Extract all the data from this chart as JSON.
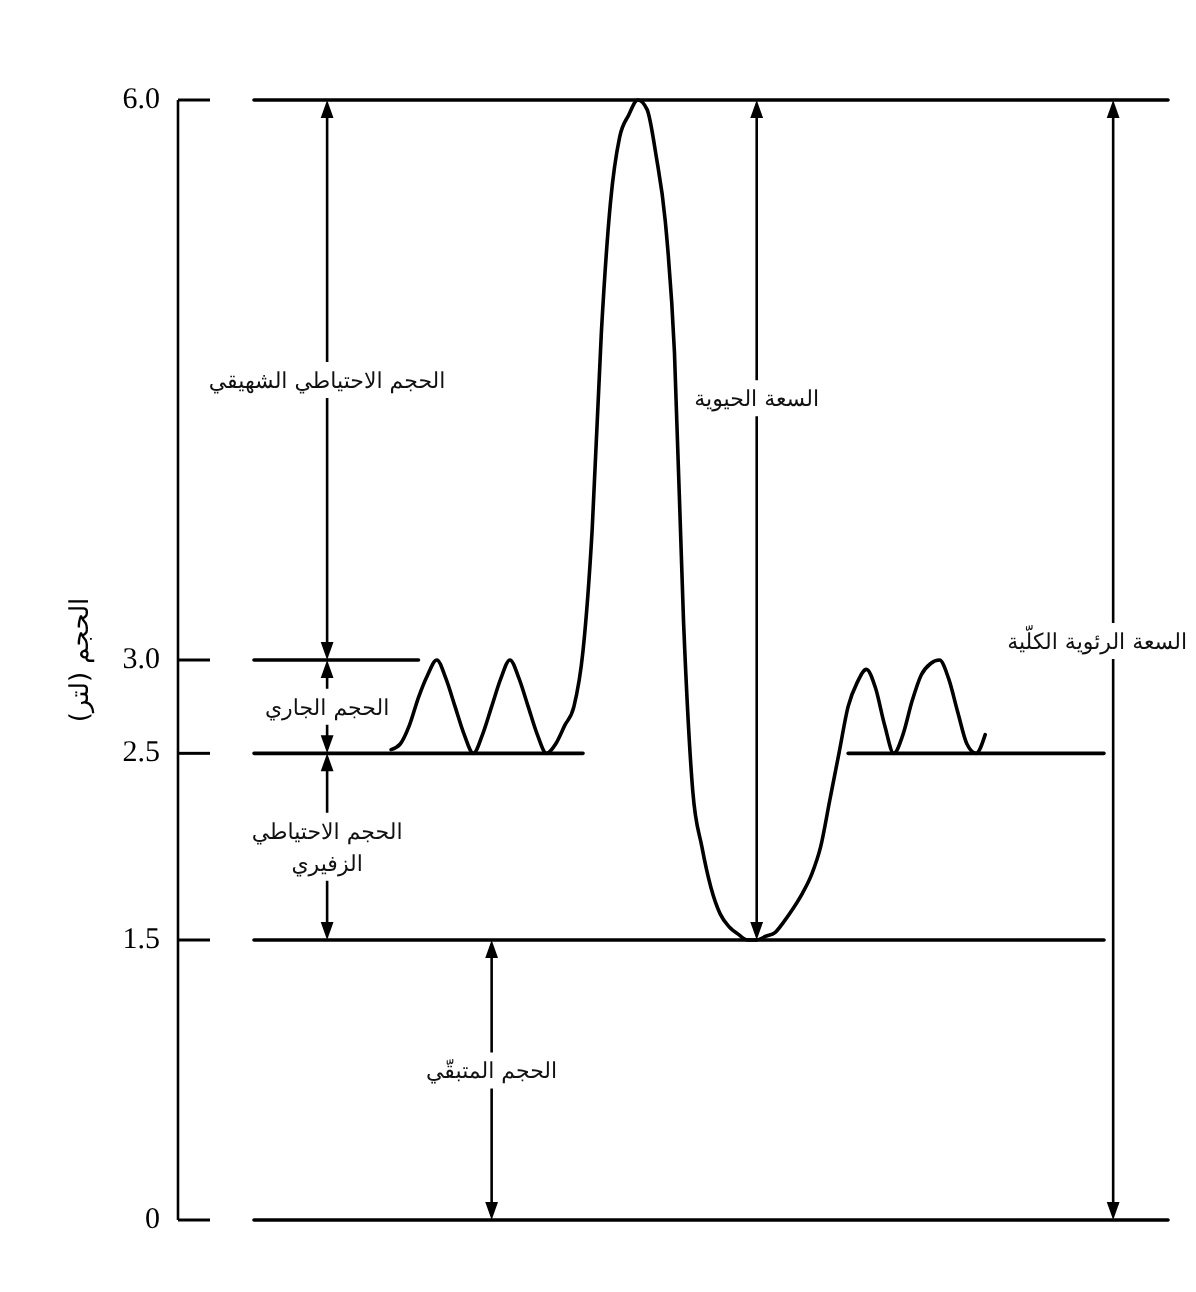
{
  "chart_data": {
    "type": "line",
    "ylabel": "الحجم (لتر)",
    "categories": [
      null,
      null,
      null,
      null,
      null,
      null,
      null,
      null,
      null,
      null,
      null,
      null,
      null,
      null,
      null,
      null,
      null,
      null,
      null,
      null,
      null,
      null,
      null,
      null,
      null,
      null,
      null,
      null,
      null,
      null,
      null,
      null,
      null,
      null,
      null,
      null,
      null,
      null,
      null,
      null,
      null,
      null,
      null,
      null,
      null,
      null,
      null,
      null,
      null,
      null,
      null,
      null,
      null,
      null,
      null,
      null,
      null,
      null,
      null,
      null,
      null,
      null,
      null,
      null,
      null,
      null,
      null,
      null,
      null,
      null,
      null,
      null,
      null,
      null,
      null,
      null,
      null,
      null,
      null,
      null,
      null,
      null,
      null,
      null,
      null,
      null,
      null,
      null,
      null,
      null,
      null,
      null,
      null,
      null,
      null,
      null,
      null,
      null,
      null,
      null,
      null
    ],
    "series": [
      {
        "color": "#000000",
        "values": [
          null,
          null,
          null,
          null,
          null,
          null,
          null,
          null,
          null,
          null,
          null,
          null,
          null,
          null,
          null,
          2.52,
          2.55,
          2.65,
          2.8,
          2.92,
          3,
          2.9,
          2.75,
          2.6,
          2.5,
          2.6,
          2.75,
          2.9,
          3,
          2.9,
          2.75,
          2.6,
          2.5,
          2.55,
          2.65,
          2.75,
          3.05,
          3.7,
          4.75,
          5.45,
          5.8,
          5.92,
          6,
          5.95,
          5.7,
          5.35,
          4.65,
          3.2,
          2.3,
          2,
          1.78,
          1.64,
          1.57,
          1.53,
          1.5,
          1.5,
          1.52,
          1.54,
          1.6,
          1.67,
          1.75,
          1.85,
          2,
          2.25,
          2.5,
          2.75,
          2.88,
          2.95,
          2.85,
          2.65,
          2.5,
          2.6,
          2.78,
          2.92,
          2.98,
          3,
          2.9,
          2.72,
          2.55,
          2.5,
          2.6,
          null,
          null,
          null,
          null,
          null,
          null,
          null,
          null,
          null,
          null,
          null,
          null,
          null,
          null,
          null,
          null,
          null,
          null,
          null,
          null
        ]
      },
      {
        "color": "#000000",
        "values": [
          6,
          6,
          6,
          6,
          6,
          6,
          6,
          6,
          6,
          6,
          6,
          6,
          6,
          6,
          6,
          6,
          6,
          6,
          6,
          6,
          6,
          6,
          6,
          6,
          6,
          6,
          6,
          6,
          6,
          6,
          6,
          6,
          6,
          6,
          6,
          6,
          6,
          6,
          6,
          6,
          6,
          6,
          6,
          6,
          6,
          6,
          6,
          6,
          6,
          6,
          6,
          6,
          6,
          6,
          6,
          6,
          6,
          6,
          6,
          6,
          6,
          6,
          6,
          6,
          6,
          6,
          6,
          6,
          6,
          6,
          6,
          6,
          6,
          6,
          6,
          6,
          6,
          6,
          6,
          6,
          6,
          6,
          6,
          6,
          6,
          6,
          6,
          6,
          6,
          6,
          6,
          6,
          6,
          6,
          6,
          6,
          6,
          6,
          6,
          6,
          6
        ]
      },
      {
        "color": "#000000",
        "values": [
          3,
          3,
          3,
          3,
          3,
          3,
          3,
          3,
          3,
          3,
          3,
          3,
          3,
          3,
          3,
          3,
          3,
          3,
          3,
          null,
          null,
          null,
          null,
          null,
          null,
          null,
          null,
          null,
          null,
          null,
          null,
          null,
          null,
          null,
          null,
          null,
          null,
          null,
          null,
          null,
          null,
          null,
          null,
          null,
          null,
          null,
          null,
          null,
          null,
          null,
          null,
          null,
          null,
          null,
          null,
          null,
          null,
          null,
          null,
          null,
          null,
          null,
          null,
          null,
          null,
          null,
          null,
          null,
          null,
          null,
          null,
          null,
          null,
          null,
          null,
          null,
          null,
          null,
          null,
          null,
          null,
          null,
          null,
          null,
          null,
          null,
          null,
          null,
          null,
          null,
          null,
          null,
          null,
          null,
          null,
          null,
          null,
          null,
          null,
          null,
          null
        ]
      },
      {
        "color": "#000000",
        "values": [
          2.5,
          2.5,
          2.5,
          2.5,
          2.5,
          2.5,
          2.5,
          2.5,
          2.5,
          2.5,
          2.5,
          2.5,
          2.5,
          2.5,
          2.5,
          2.5,
          2.5,
          2.5,
          2.5,
          2.5,
          2.5,
          2.5,
          2.5,
          2.5,
          2.5,
          2.5,
          2.5,
          2.5,
          2.5,
          2.5,
          2.5,
          2.5,
          2.5,
          2.5,
          2.5,
          2.5,
          2.5,
          null,
          null,
          null,
          null,
          null,
          null,
          null,
          null,
          null,
          null,
          null,
          null,
          null,
          null,
          null,
          null,
          null,
          null,
          null,
          null,
          null,
          null,
          null,
          null,
          null,
          null,
          null,
          null,
          2.5,
          2.5,
          2.5,
          2.5,
          2.5,
          2.5,
          2.5,
          2.5,
          2.5,
          2.5,
          2.5,
          2.5,
          2.5,
          2.5,
          2.5,
          2.5,
          2.5,
          2.5,
          2.5,
          2.5,
          2.5,
          2.5,
          2.5,
          2.5,
          2.5,
          2.5,
          2.5,
          2.5,
          2.5,
          null,
          null,
          null,
          null,
          null,
          null,
          null
        ]
      },
      {
        "color": "#000000",
        "values": [
          1.5,
          1.5,
          1.5,
          1.5,
          1.5,
          1.5,
          1.5,
          1.5,
          1.5,
          1.5,
          1.5,
          1.5,
          1.5,
          1.5,
          1.5,
          1.5,
          1.5,
          1.5,
          1.5,
          1.5,
          1.5,
          1.5,
          1.5,
          1.5,
          1.5,
          1.5,
          1.5,
          1.5,
          1.5,
          1.5,
          1.5,
          1.5,
          1.5,
          1.5,
          1.5,
          1.5,
          1.5,
          1.5,
          1.5,
          1.5,
          1.5,
          1.5,
          1.5,
          1.5,
          1.5,
          1.5,
          1.5,
          1.5,
          1.5,
          1.5,
          1.5,
          1.5,
          1.5,
          1.5,
          1.5,
          1.5,
          1.5,
          1.5,
          1.5,
          1.5,
          1.5,
          1.5,
          1.5,
          1.5,
          1.5,
          1.5,
          1.5,
          1.5,
          1.5,
          1.5,
          1.5,
          1.5,
          1.5,
          1.5,
          1.5,
          1.5,
          1.5,
          1.5,
          1.5,
          1.5,
          1.5,
          1.5,
          1.5,
          1.5,
          1.5,
          1.5,
          1.5,
          1.5,
          1.5,
          1.5,
          1.5,
          1.5,
          1.5,
          1.5,
          null,
          null,
          null,
          null,
          null,
          null,
          null
        ]
      },
      {
        "color": "#000000",
        "values": [
          0,
          0,
          0,
          0,
          0,
          0,
          0,
          0,
          0,
          0,
          0,
          0,
          0,
          0,
          0,
          0,
          0,
          0,
          0,
          0,
          0,
          0,
          0,
          0,
          0,
          0,
          0,
          0,
          0,
          0,
          0,
          0,
          0,
          0,
          0,
          0,
          0,
          0,
          0,
          0,
          0,
          0,
          0,
          0,
          0,
          0,
          0,
          0,
          0,
          0,
          0,
          0,
          0,
          0,
          0,
          0,
          0,
          0,
          0,
          0,
          0,
          0,
          0,
          0,
          0,
          0,
          0,
          0,
          0,
          0,
          0,
          0,
          0,
          0,
          0,
          0,
          0,
          0,
          0,
          0,
          0,
          0,
          0,
          0,
          0,
          0,
          0,
          0,
          0,
          0,
          0,
          0,
          0,
          0,
          0,
          0,
          0,
          0,
          0,
          0,
          0
        ]
      }
    ],
    "ylim": [
      0,
      6
    ],
    "yticks": [
      0,
      1.5,
      2.5,
      {
        "value": 3,
        "label": "3.0"
      },
      {
        "value": 6,
        "label": "6.0"
      }
    ],
    "tick_labels": "y",
    "annotations": [
      "الحجم الاحتياطي الشهيقي",
      "الحجم الجاري",
      "الحجم الاحتياطي الزفيري",
      "الحجم المتبقّي",
      "السعة الحيوية",
      "السعة الرئوية الكلّية"
    ]
  }
}
